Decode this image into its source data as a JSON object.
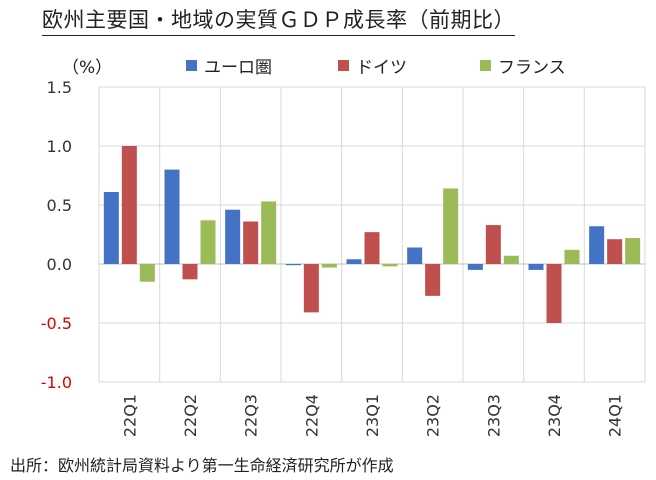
{
  "title": "欧州主要国・地域の実質ＧＤＰ成長率（前期比）",
  "unit": "（%）",
  "source": "出所：欧州統計局資料より第一生命経済研究所が作成",
  "colors": {
    "euro": "#4472C4",
    "germany": "#C0504D",
    "france": "#9BBB59",
    "negative_label": "#E00000",
    "grid": "#D9D9D9",
    "axis_label": "#333333"
  },
  "chart_data": {
    "type": "bar",
    "categories": [
      "22Q1",
      "22Q2",
      "22Q3",
      "22Q4",
      "23Q1",
      "23Q2",
      "23Q3",
      "23Q4",
      "24Q1"
    ],
    "series": [
      {
        "name": "ユーロ圏",
        "values": [
          0.61,
          0.8,
          0.46,
          -0.01,
          0.04,
          0.14,
          -0.05,
          -0.05,
          0.32
        ]
      },
      {
        "name": "ドイツ",
        "values": [
          1.0,
          -0.13,
          0.36,
          -0.41,
          0.27,
          -0.27,
          0.33,
          -0.5,
          0.21
        ]
      },
      {
        "name": "フランス",
        "values": [
          -0.15,
          0.37,
          0.53,
          -0.03,
          -0.02,
          0.64,
          0.07,
          0.12,
          0.22
        ]
      }
    ],
    "ylim": [
      -1.0,
      1.5
    ],
    "yticks": [
      "1.5",
      "1.0",
      "0.5",
      "0.0",
      "-0.5",
      "-1.0"
    ],
    "ytick_values": [
      1.5,
      1.0,
      0.5,
      0.0,
      -0.5,
      -1.0
    ],
    "grid": true,
    "legend_placement": "top"
  }
}
